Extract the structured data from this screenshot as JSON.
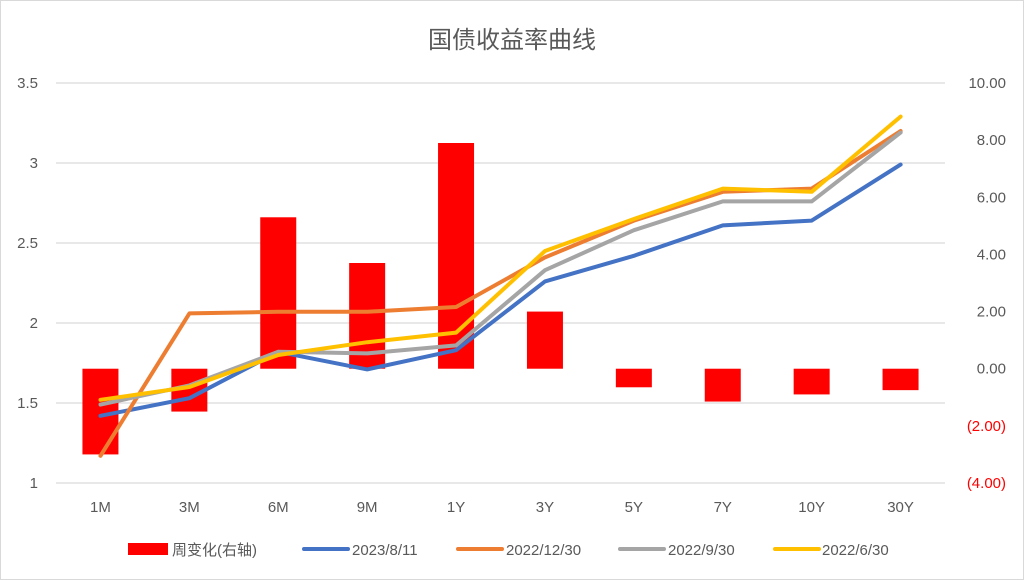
{
  "chart_data": {
    "type": "bar+line",
    "title": "国债收益率曲线",
    "categories": [
      "1M",
      "3M",
      "6M",
      "9M",
      "1Y",
      "3Y",
      "5Y",
      "7Y",
      "10Y",
      "30Y"
    ],
    "left_axis": {
      "ticks": [
        "3.5",
        "3",
        "2.5",
        "2",
        "1.5",
        "1"
      ],
      "tick_values": [
        3.5,
        3.0,
        2.5,
        2.0,
        1.5,
        1.0
      ],
      "ylim": [
        1,
        3.5
      ]
    },
    "right_axis": {
      "ticks": [
        "10.00",
        "8.00",
        "6.00",
        "4.00",
        "2.00",
        "0.00",
        "(2.00)",
        "(4.00)"
      ],
      "tick_values": [
        10,
        8,
        6,
        4,
        2,
        0,
        -2,
        -4
      ],
      "ylim": [
        -4,
        10
      ],
      "negative_color": "#ff0000"
    },
    "grid": true,
    "legend_position": "bottom",
    "series": [
      {
        "name": "周变化(右轴)",
        "type": "bar",
        "axis": "right",
        "color": "#ff0000",
        "values": [
          -3.0,
          -1.5,
          5.3,
          3.7,
          7.9,
          2.0,
          -0.65,
          -1.15,
          -0.9,
          -0.75
        ]
      },
      {
        "name": "2023/8/11",
        "type": "line",
        "axis": "left",
        "color": "#4472c4",
        "values": [
          1.42,
          1.53,
          1.82,
          1.71,
          1.83,
          2.26,
          2.42,
          2.61,
          2.64,
          2.99
        ]
      },
      {
        "name": "2022/12/30",
        "type": "line",
        "axis": "left",
        "color": "#ed7d31",
        "values": [
          1.17,
          2.06,
          2.07,
          2.07,
          2.1,
          2.41,
          2.64,
          2.82,
          2.84,
          3.2
        ]
      },
      {
        "name": "2022/9/30",
        "type": "line",
        "axis": "left",
        "color": "#a5a5a5",
        "values": [
          1.49,
          1.61,
          1.82,
          1.81,
          1.86,
          2.33,
          2.58,
          2.76,
          2.76,
          3.19
        ]
      },
      {
        "name": "2022/6/30",
        "type": "line",
        "axis": "left",
        "color": "#ffc000",
        "values": [
          1.52,
          1.6,
          1.8,
          1.88,
          1.94,
          2.45,
          2.65,
          2.84,
          2.82,
          3.29
        ]
      }
    ]
  }
}
